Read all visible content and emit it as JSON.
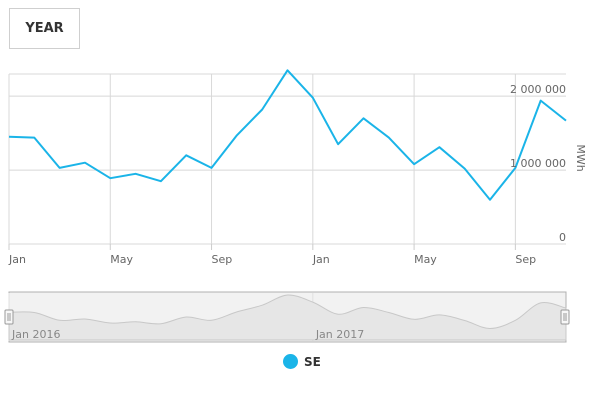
{
  "controls": {
    "range_button": "YEAR"
  },
  "colors": {
    "series": "#1ab4e8",
    "grid": "#d8d8d8",
    "navigator_fill": "#e6e6e6",
    "navigator_line": "#c8c8c8",
    "navigator_bg": "#f2f2f2"
  },
  "legend": {
    "icon": "circle-marker-icon",
    "label": "SE"
  },
  "chart_data": {
    "type": "line",
    "title": "",
    "xlabel": "",
    "ylabel": "MWh",
    "ylim": [
      0,
      2300000
    ],
    "y_ticks": [
      {
        "value": 0,
        "label": "0"
      },
      {
        "value": 1000000,
        "label": "1 000 000"
      },
      {
        "value": 2000000,
        "label": "2 000 000"
      }
    ],
    "x_ticks": [
      {
        "month_index": 0,
        "label": "Jan"
      },
      {
        "month_index": 4,
        "label": "May"
      },
      {
        "month_index": 8,
        "label": "Sep"
      },
      {
        "month_index": 12,
        "label": "Jan"
      },
      {
        "month_index": 16,
        "label": "May"
      },
      {
        "month_index": 20,
        "label": "Sep"
      }
    ],
    "grid": true,
    "x": [
      "2016-01",
      "2016-02",
      "2016-03",
      "2016-04",
      "2016-05",
      "2016-06",
      "2016-07",
      "2016-08",
      "2016-09",
      "2016-10",
      "2016-11",
      "2016-12",
      "2017-01",
      "2017-02",
      "2017-03",
      "2017-04",
      "2017-05",
      "2017-06",
      "2017-07",
      "2017-08",
      "2017-09",
      "2017-10",
      "2017-11"
    ],
    "series": [
      {
        "name": "SE",
        "values": [
          1450000,
          1440000,
          1030000,
          1100000,
          890000,
          950000,
          850000,
          1200000,
          1030000,
          1470000,
          1820000,
          2350000,
          1980000,
          1350000,
          1700000,
          1440000,
          1080000,
          1310000,
          1020000,
          600000,
          1030000,
          1940000,
          1670000
        ]
      }
    ],
    "navigator": {
      "labels": [
        "Jan 2016",
        "Jan 2017"
      ]
    }
  }
}
